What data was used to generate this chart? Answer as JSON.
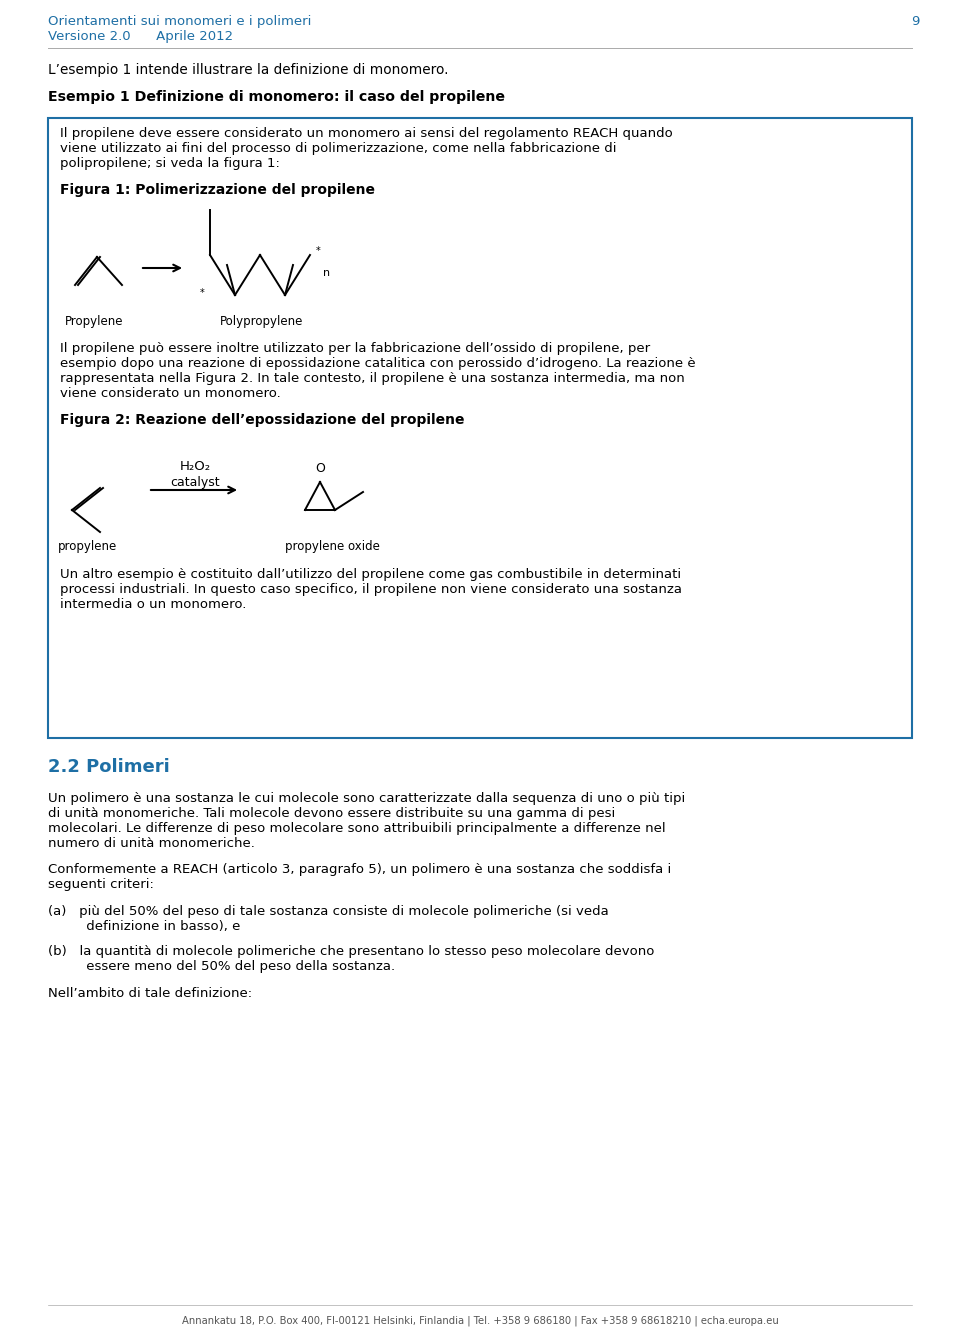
{
  "header_line1": "Orientamenti sui monomeri e i polimeri",
  "header_line2": "Versione 2.0      Aprile 2012",
  "header_page": "9",
  "header_color": "#1e6fa5",
  "footer_text": "Annankatu 18, P.O. Box 400, FI-00121 Helsinki, Finlandia | Tel. +358 9 686180 | Fax +358 9 68618210 | echa.europa.eu",
  "bg_color": "#ffffff",
  "box_border_color": "#1e6fa5",
  "section_color": "#1e6fa5",
  "para1": "L’esempio 1 intende illustrare la definizione di monomero.",
  "heading1": "Esempio 1 Definizione di monomero: il caso del propilene",
  "box_text1a": "Il propilene deve essere considerato un monomero ai sensi del regolamento REACH quando",
  "box_text1b": "viene utilizzato ai fini del processo di polimerizzazione, come nella fabbricazione di",
  "box_text1c": "polipropilene; si veda la figura 1:",
  "fig1_title": "Figura 1: Polimerizzazione del propilene",
  "label_propylene": "Propylene",
  "label_polypropylene": "Polypropylene",
  "box_text2a": "Il propilene può essere inoltre utilizzato per la fabbricazione dell’ossido di propilene, per",
  "box_text2b": "esempio dopo una reazione di epossidazione catalitica con perossido d’idrogeno. La reazione è",
  "box_text2c": "rappresentata nella Figura 2. In tale contesto, il propilene è una sostanza intermedia, ma non",
  "box_text2d": "viene considerato un monomero.",
  "fig2_title": "Figura 2: Reazione dell’epossidazione del propilene",
  "h2o2_label": "H₂O₂",
  "catalyst_label": "catalyst",
  "propylene_label": "propylene",
  "propylene_oxide_label": "propylene oxide",
  "box_text3a": "Un altro esempio è costituito dall’utilizzo del propilene come gas combustibile in determinati",
  "box_text3b": "processi industriali. In questo caso specifico, il propilene non viene considerato una sostanza",
  "box_text3c": "intermedia o un monomero.",
  "section2_title": "2.2 Polimeri",
  "para_polymer1a": "Un polimero è una sostanza le cui molecole sono caratterizzate dalla sequenza di uno o più tipi",
  "para_polymer1b": "di unità monomeriche. Tali molecole devono essere distribuite su una gamma di pesi",
  "para_polymer1c": "molecolari. Le differenze di peso molecolare sono attribuibili principalmente a differenze nel",
  "para_polymer1d": "numero di unità monomeriche.",
  "para_polymer2a": "Conformemente a REACH (articolo 3, paragrafo 5), un polimero è una sostanza che soddisfa i",
  "para_polymer2b": "seguenti criteri:",
  "item_a1": "(a)   più del 50% del peso di tale sostanza consiste di molecole polimeriche (si veda",
  "item_a2": "         definizione in basso), e",
  "item_b1": "(b)   la quantità di molecole polimeriche che presentano lo stesso peso molecolare devono",
  "item_b2": "         essere meno del 50% del peso della sostanza.",
  "para_polymer3": "Nell’ambito di tale definizione:"
}
